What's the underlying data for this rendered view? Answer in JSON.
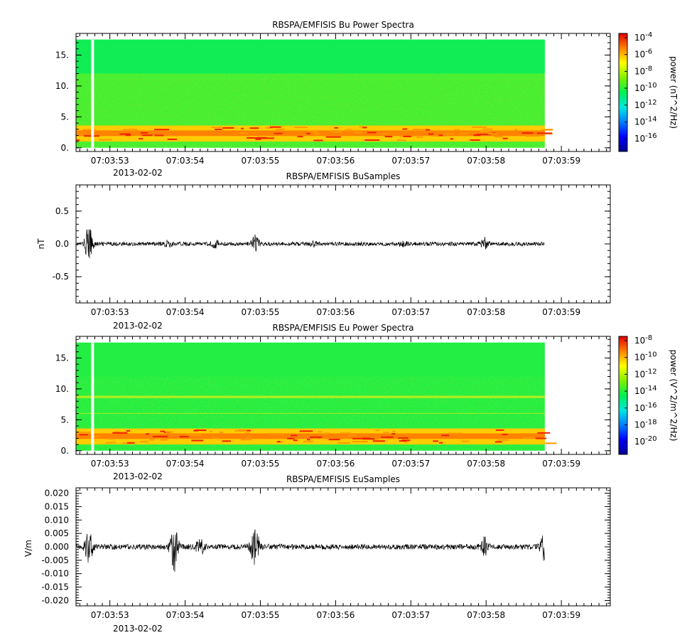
{
  "chart_data": [
    {
      "id": "bu-spectra",
      "type": "heatmap",
      "title": "RBSPA/EMFISIS  Bu Power Spectra",
      "xlabel": "",
      "ylabel": "",
      "x_ticks": [
        "07:03:53",
        "07:03:54",
        "07:03:55",
        "07:03:56",
        "07:03:57",
        "07:03:58",
        "07:03:59"
      ],
      "x_date_label": "2013-02-02",
      "x_range_s": [
        52.55,
        59.65
      ],
      "data_end_s": 58.78,
      "y_ticks": [
        "0.",
        "5.",
        "10.",
        "15."
      ],
      "y_tick_values": [
        0,
        5,
        10,
        15
      ],
      "ylim": [
        -0.6,
        18.5
      ],
      "freq_max": 17.5,
      "gap_s": 52.77,
      "colorbar": {
        "label": "power (nT^2/Hz)",
        "tick_labels": [
          "10-4",
          "10-6",
          "10-8",
          "10-10",
          "10-12",
          "10-14",
          "10-16"
        ],
        "tick_exponents": [
          -4,
          -6,
          -8,
          -10,
          -12,
          -14,
          -16
        ],
        "range_exp": [
          -17.5,
          -3.5
        ]
      },
      "bands": [
        {
          "name": "low-frequency band",
          "from": 1.0,
          "to": 3.6,
          "level": "high"
        },
        {
          "name": "mid band",
          "from": 3.6,
          "to": 12.0,
          "level": "medium"
        },
        {
          "name": "upper band",
          "from": 12.0,
          "to": 17.5,
          "level": "low"
        }
      ]
    },
    {
      "id": "bu-samples",
      "type": "line",
      "title": "RBSPA/EMFISIS  BuSamples",
      "xlabel": "",
      "ylabel": "nT",
      "x_ticks": [
        "07:03:53",
        "07:03:54",
        "07:03:55",
        "07:03:56",
        "07:03:57",
        "07:03:58",
        "07:03:59"
      ],
      "x_date_label": "2013-02-02",
      "x_range_s": [
        52.55,
        59.65
      ],
      "data_end_s": 58.78,
      "y_ticks": [
        "-0.5",
        "0.0",
        "0.5"
      ],
      "y_tick_values": [
        -0.5,
        0.0,
        0.5
      ],
      "ylim": [
        -0.9,
        0.9
      ],
      "baseline_amplitude": 0.03,
      "bursts": [
        {
          "t": 52.72,
          "amp": 0.25
        },
        {
          "t": 53.78,
          "amp": 0.05
        },
        {
          "t": 54.4,
          "amp": 0.05
        },
        {
          "t": 54.93,
          "amp": 0.13
        },
        {
          "t": 55.7,
          "amp": 0.03
        },
        {
          "t": 56.9,
          "amp": 0.03
        },
        {
          "t": 57.98,
          "amp": 0.08
        }
      ]
    },
    {
      "id": "eu-spectra",
      "type": "heatmap",
      "title": "RBSPA/EMFISIS  Eu Power Spectra",
      "xlabel": "",
      "ylabel": "",
      "x_ticks": [
        "07:03:53",
        "07:03:54",
        "07:03:55",
        "07:03:56",
        "07:03:57",
        "07:03:58",
        "07:03:59"
      ],
      "x_date_label": "2013-02-02",
      "x_range_s": [
        52.55,
        59.65
      ],
      "data_end_s": 58.78,
      "y_ticks": [
        "0.",
        "5.",
        "10.",
        "15."
      ],
      "y_tick_values": [
        0,
        5,
        10,
        15
      ],
      "ylim": [
        -0.6,
        18.5
      ],
      "freq_max": 17.5,
      "gap_s": 52.77,
      "colorbar": {
        "label": "power (V^2/m^2/Hz)",
        "tick_labels": [
          "10-8",
          "10-10",
          "10-12",
          "10-14",
          "10-16",
          "10-18",
          "10-20"
        ],
        "tick_exponents": [
          -8,
          -10,
          -12,
          -14,
          -16,
          -18,
          -20
        ],
        "range_exp": [
          -21.5,
          -7.5
        ]
      },
      "bands": [
        {
          "name": "low-frequency band",
          "from": 1.0,
          "to": 3.6,
          "level": "high"
        },
        {
          "name": "line",
          "from": 8.5,
          "to": 8.9,
          "level": "medium"
        },
        {
          "name": "background",
          "from": 3.6,
          "to": 17.5,
          "level": "low"
        }
      ]
    },
    {
      "id": "eu-samples",
      "type": "line",
      "title": "RBSPA/EMFISIS  EuSamples",
      "xlabel": "",
      "ylabel": "V/m",
      "x_ticks": [
        "07:03:53",
        "07:03:54",
        "07:03:55",
        "07:03:56",
        "07:03:57",
        "07:03:58",
        "07:03:59"
      ],
      "x_date_label": "2013-02-02",
      "x_range_s": [
        52.55,
        59.65
      ],
      "data_end_s": 58.78,
      "y_ticks": [
        "0.020",
        "0.015",
        "0.010",
        "0.005",
        "0.000",
        "-0.005",
        "-0.010",
        "-0.015",
        "-0.020"
      ],
      "y_tick_values": [
        0.02,
        0.015,
        0.01,
        0.005,
        0.0,
        -0.005,
        -0.01,
        -0.015,
        -0.02
      ],
      "ylim": [
        -0.022,
        0.022
      ],
      "baseline_amplitude": 0.001,
      "bursts": [
        {
          "t": 52.72,
          "amp": 0.0055
        },
        {
          "t": 53.85,
          "amp": 0.009
        },
        {
          "t": 54.2,
          "amp": 0.003
        },
        {
          "t": 54.93,
          "amp": 0.008
        },
        {
          "t": 57.98,
          "amp": 0.003
        },
        {
          "t": 58.78,
          "amp": 0.005
        }
      ]
    }
  ]
}
